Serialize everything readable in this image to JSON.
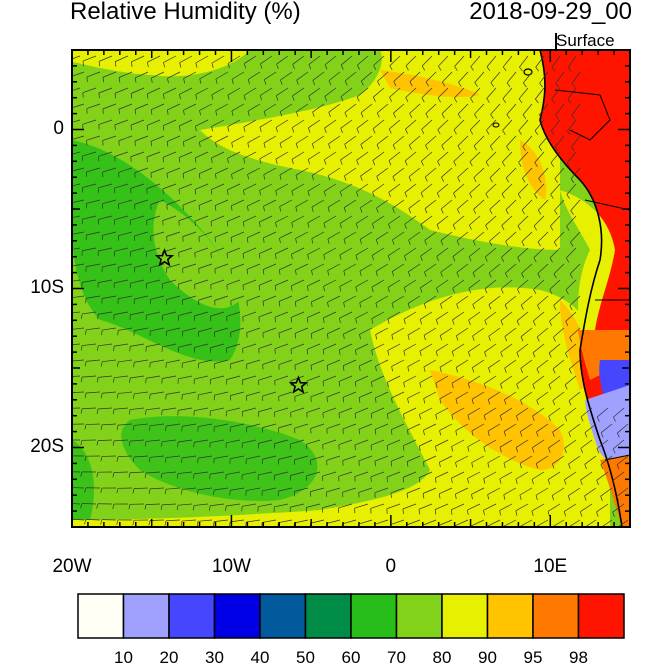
{
  "title": "Relative Humidity (%)",
  "valid_time": "2018-09-29_00",
  "level": "Surface",
  "map": {
    "lon_range": [
      -20,
      15
    ],
    "lat_range": [
      -25,
      5
    ],
    "lon_ticks": [
      {
        "value": -20,
        "label": "20W"
      },
      {
        "value": -10,
        "label": "10W"
      },
      {
        "value": 0,
        "label": "0"
      },
      {
        "value": 10,
        "label": "10E"
      }
    ],
    "lat_ticks": [
      {
        "value": 0,
        "label": "0"
      },
      {
        "value": -10,
        "label": "10S"
      },
      {
        "value": -20,
        "label": "20S"
      }
    ],
    "markers": [
      {
        "name": "star-marker",
        "lon": -14.2,
        "lat": -8.1
      },
      {
        "name": "star-marker",
        "lon": -5.8,
        "lat": -16.1
      }
    ]
  },
  "colorbar": {
    "colors": [
      "#fffff5",
      "#a0a0ff",
      "#4646ff",
      "#0000e6",
      "#005a9c",
      "#008c46",
      "#28be19",
      "#82d219",
      "#e6f000",
      "#ffc300",
      "#ff7800",
      "#ff1400"
    ],
    "labels": [
      "10",
      "20",
      "30",
      "40",
      "50",
      "60",
      "70",
      "80",
      "90",
      "95",
      "98"
    ]
  }
}
